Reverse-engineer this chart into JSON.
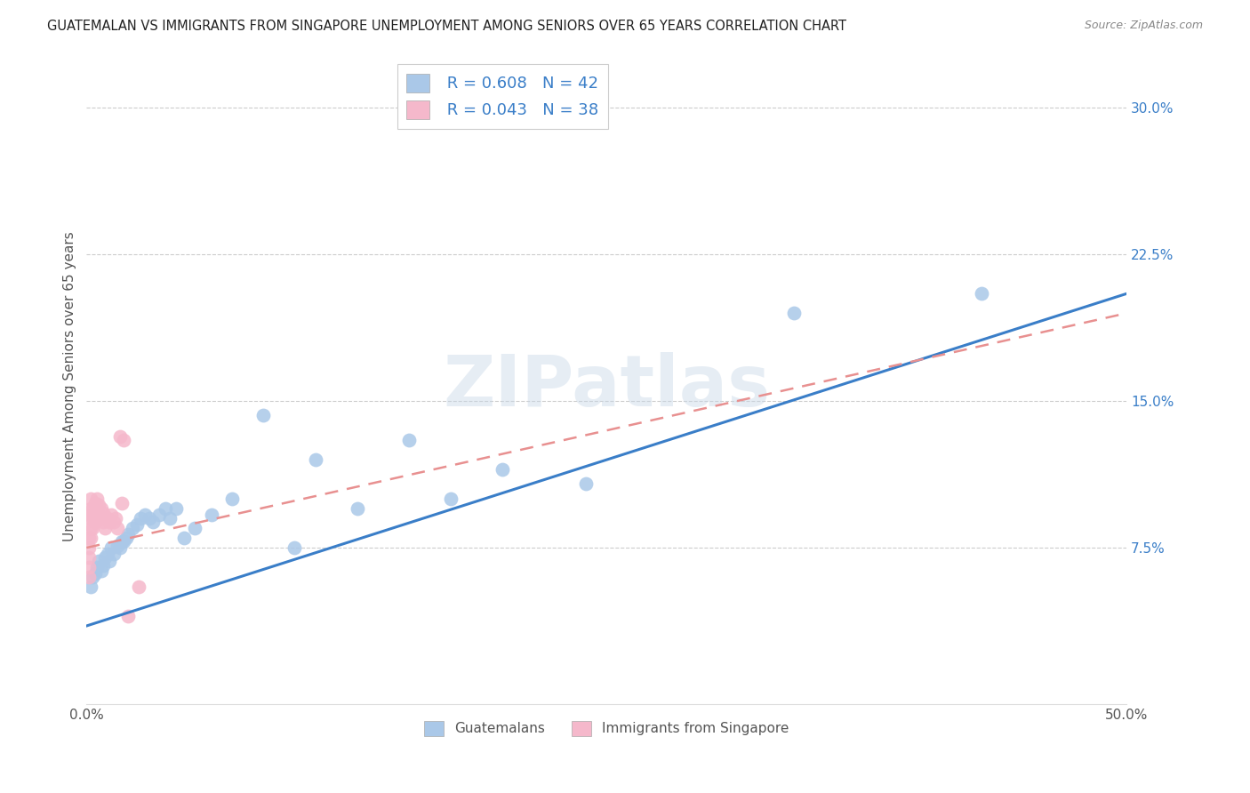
{
  "title": "GUATEMALAN VS IMMIGRANTS FROM SINGAPORE UNEMPLOYMENT AMONG SENIORS OVER 65 YEARS CORRELATION CHART",
  "source": "Source: ZipAtlas.com",
  "ylabel": "Unemployment Among Seniors over 65 years",
  "xmin": 0.0,
  "xmax": 0.5,
  "ymin": -0.005,
  "ymax": 0.32,
  "guatemalan_color": "#aac8e8",
  "singapore_color": "#f5b8cb",
  "line_blue": "#3a7ec8",
  "line_pink": "#e89090",
  "R_guatemalan": 0.608,
  "N_guatemalan": 42,
  "R_singapore": 0.043,
  "N_singapore": 38,
  "legend_labels": [
    "Guatemalans",
    "Immigrants from Singapore"
  ],
  "watermark": "ZIPatlas",
  "guatemalan_x": [
    0.002,
    0.003,
    0.004,
    0.005,
    0.006,
    0.007,
    0.008,
    0.009,
    0.01,
    0.011,
    0.012,
    0.013,
    0.015,
    0.016,
    0.017,
    0.018,
    0.019,
    0.02,
    0.022,
    0.024,
    0.026,
    0.028,
    0.03,
    0.032,
    0.035,
    0.038,
    0.04,
    0.043,
    0.047,
    0.052,
    0.06,
    0.07,
    0.085,
    0.1,
    0.11,
    0.13,
    0.155,
    0.175,
    0.2,
    0.24,
    0.34,
    0.43
  ],
  "guatemalan_y": [
    0.055,
    0.06,
    0.062,
    0.065,
    0.068,
    0.063,
    0.066,
    0.07,
    0.072,
    0.068,
    0.075,
    0.072,
    0.076,
    0.075,
    0.078,
    0.078,
    0.08,
    0.082,
    0.085,
    0.087,
    0.09,
    0.092,
    0.09,
    0.088,
    0.092,
    0.095,
    0.09,
    0.095,
    0.08,
    0.085,
    0.092,
    0.1,
    0.143,
    0.075,
    0.12,
    0.095,
    0.13,
    0.1,
    0.115,
    0.108,
    0.195,
    0.205
  ],
  "singapore_x": [
    0.001,
    0.001,
    0.001,
    0.001,
    0.001,
    0.002,
    0.002,
    0.002,
    0.002,
    0.002,
    0.003,
    0.003,
    0.003,
    0.003,
    0.004,
    0.004,
    0.004,
    0.005,
    0.005,
    0.005,
    0.006,
    0.006,
    0.007,
    0.007,
    0.008,
    0.008,
    0.009,
    0.01,
    0.011,
    0.012,
    0.013,
    0.014,
    0.015,
    0.016,
    0.017,
    0.018,
    0.02,
    0.025
  ],
  "singapore_y": [
    0.06,
    0.065,
    0.07,
    0.075,
    0.08,
    0.08,
    0.085,
    0.09,
    0.095,
    0.1,
    0.085,
    0.09,
    0.092,
    0.095,
    0.088,
    0.093,
    0.098,
    0.09,
    0.095,
    0.1,
    0.092,
    0.097,
    0.09,
    0.095,
    0.088,
    0.093,
    0.085,
    0.09,
    0.088,
    0.092,
    0.088,
    0.09,
    0.085,
    0.132,
    0.098,
    0.13,
    0.04,
    0.055
  ]
}
